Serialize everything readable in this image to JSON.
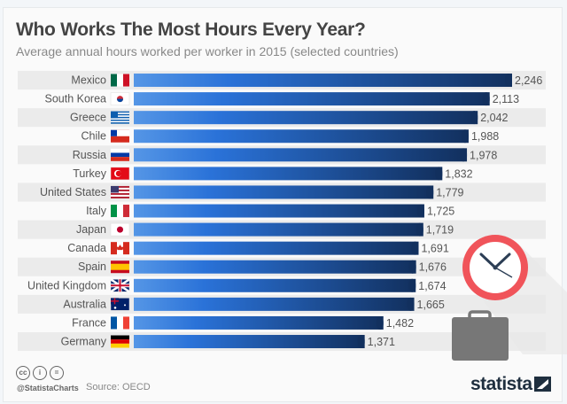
{
  "chart_data": {
    "type": "bar",
    "orientation": "horizontal",
    "title": "Who Works The Most Hours Every Year?",
    "subtitle": "Average annual hours worked per worker in 2015 (selected countries)",
    "categories": [
      "Mexico",
      "South Korea",
      "Greece",
      "Chile",
      "Russia",
      "Turkey",
      "United States",
      "Italy",
      "Japan",
      "Canada",
      "Spain",
      "United Kingdom",
      "Australia",
      "France",
      "Germany"
    ],
    "values": [
      2246,
      2113,
      2042,
      1988,
      1978,
      1832,
      1779,
      1725,
      1719,
      1691,
      1676,
      1674,
      1665,
      1482,
      1371
    ],
    "value_labels": [
      "2,246",
      "2,113",
      "2,042",
      "1,988",
      "1,978",
      "1,832",
      "1,779",
      "1,725",
      "1,719",
      "1,691",
      "1,676",
      "1,674",
      "1,665",
      "1,482",
      "1,371"
    ],
    "xlim": [
      0,
      2246
    ],
    "grid": false,
    "bar_gradient": [
      "#4a90e2",
      "#2a72d8",
      "#12305e"
    ]
  },
  "footer": {
    "handle": "@StatistaCharts",
    "source": "Source: OECD",
    "logo": "statista",
    "license_icons": [
      "cc-icon",
      "by-icon",
      "nd-icon"
    ]
  },
  "colors": {
    "clock": "#f0545a",
    "briefcase": "#777777"
  }
}
